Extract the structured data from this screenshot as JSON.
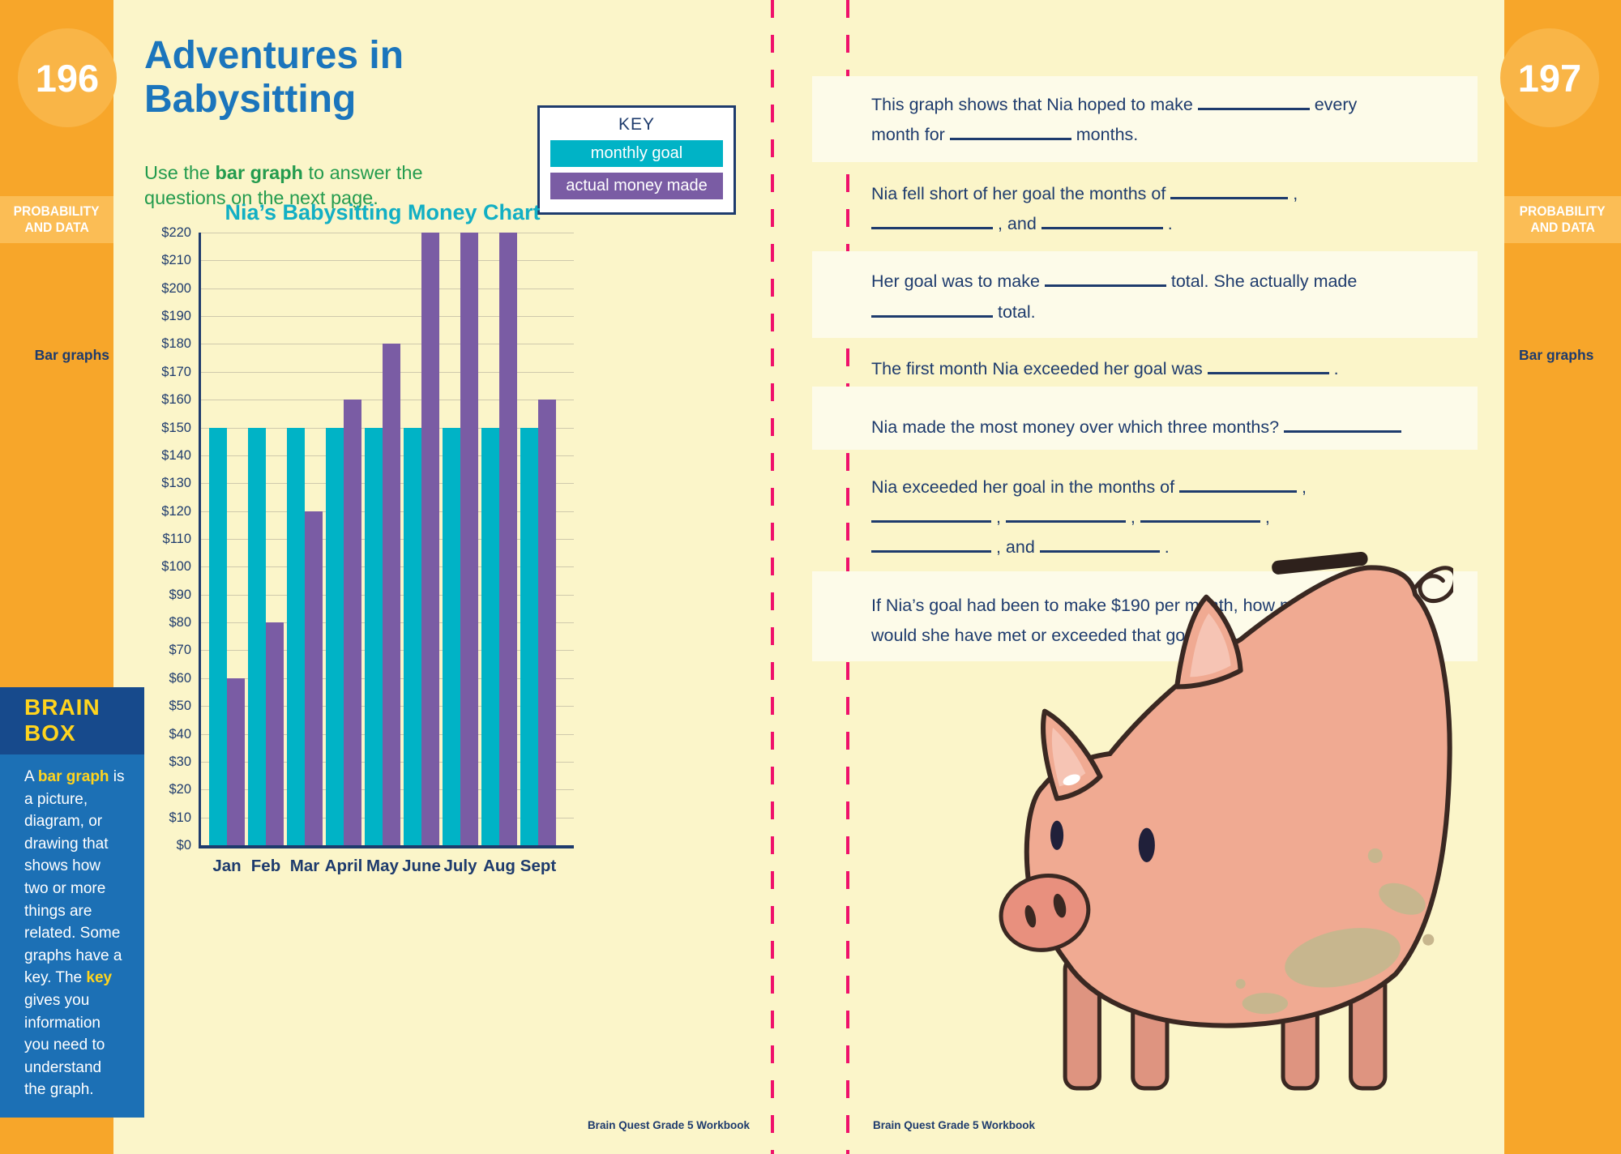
{
  "left_sidebar": {
    "page_number": "196",
    "section_line1": "PROBABILITY",
    "section_line2": "AND DATA",
    "topic_label": "Bar graphs",
    "brain_box": {
      "title_line1": "BRAIN",
      "title_line2": "BOX",
      "body_segments": [
        {
          "t": "A "
        },
        {
          "t": "bar graph",
          "hl": true
        },
        {
          "t": " is a picture, diagram, or drawing that shows how two or more things are related. Some graphs have a key. The "
        },
        {
          "t": "key",
          "hl": true
        },
        {
          "t": " gives you information you need to understand the graph."
        }
      ]
    }
  },
  "right_sidebar": {
    "page_number": "197",
    "section_line1": "PROBABILITY",
    "section_line2": "AND DATA",
    "topic_label": "Bar graphs"
  },
  "left_page": {
    "title_line1": "Adventures in",
    "title_line2": "Babysitting",
    "subtitle_segments": [
      {
        "t": "Use the "
      },
      {
        "t": "bar graph",
        "b": true
      },
      {
        "t": " to answer the questions on the next page."
      }
    ],
    "key": {
      "title": "KEY",
      "items": [
        {
          "label": "monthly goal",
          "color": "#00B3C6"
        },
        {
          "label": "actual money made",
          "color": "#7A5CA4"
        }
      ]
    },
    "footer": "Brain Quest Grade 5 Workbook"
  },
  "right_page": {
    "questions": [
      {
        "lines": [
          [
            {
              "t": "This graph shows that Nia hoped to make "
            },
            {
              "blank": 138
            },
            {
              "t": " every"
            }
          ],
          [
            {
              "t": "month for "
            },
            {
              "blank": 150
            },
            {
              "t": " months."
            }
          ]
        ]
      },
      {
        "lines": [
          [
            {
              "t": "Nia fell short of her goal the months of "
            },
            {
              "blank": 145
            },
            {
              "t": " ,"
            }
          ],
          [
            {
              "blank": 150
            },
            {
              "t": " , and "
            },
            {
              "blank": 150
            },
            {
              "t": " ."
            }
          ]
        ]
      },
      {
        "lines": [
          [
            {
              "t": "Her goal was to make "
            },
            {
              "blank": 150
            },
            {
              "t": " total. She actually made"
            }
          ],
          [
            {
              "blank": 150
            },
            {
              "t": " total."
            }
          ]
        ]
      },
      {
        "lines": [
          [
            {
              "t": "The first month Nia exceeded her goal was "
            },
            {
              "blank": 150
            },
            {
              "t": " ."
            }
          ]
        ]
      },
      {
        "lines": [
          [
            {
              "t": "Nia made the most money over which three months? "
            },
            {
              "blank": 145
            }
          ]
        ]
      },
      {
        "lines": [
          [
            {
              "t": "Nia exceeded her goal in the months of "
            },
            {
              "blank": 145
            },
            {
              "t": " ,"
            }
          ],
          [
            {
              "blank": 148
            },
            {
              "t": " , "
            },
            {
              "blank": 148
            },
            {
              "t": " , "
            },
            {
              "blank": 148
            },
            {
              "t": " ,"
            }
          ],
          [
            {
              "blank": 148
            },
            {
              "t": " , and "
            },
            {
              "blank": 148
            },
            {
              "t": " ."
            }
          ]
        ]
      },
      {
        "lines": [
          [
            {
              "t": "If Nia’s goal had been to make $190 per month, how many months"
            }
          ],
          [
            {
              "t": "would she have met or exceeded that goal? "
            },
            {
              "blank": 140
            }
          ]
        ]
      }
    ],
    "footer": "Brain Quest Grade 5 Workbook"
  },
  "chart_data": {
    "type": "bar",
    "title": "Nia’s Babysitting Money Chart",
    "categories": [
      "Jan",
      "Feb",
      "Mar",
      "April",
      "May",
      "June",
      "July",
      "Aug",
      "Sept"
    ],
    "series": [
      {
        "name": "monthly goal",
        "color": "#00B3C6",
        "values": [
          150,
          150,
          150,
          150,
          150,
          150,
          150,
          150,
          150
        ]
      },
      {
        "name": "actual money made",
        "color": "#7A5CA4",
        "values": [
          60,
          80,
          120,
          160,
          180,
          220,
          220,
          220,
          160
        ]
      }
    ],
    "xlabel": "",
    "ylabel": "",
    "ylim": [
      0,
      220
    ],
    "ytick_step": 10,
    "ytick_prefix": "$",
    "grid": true,
    "legend_position": "key box, top of left page"
  },
  "colors": {
    "page_bg": "#FBF5C9",
    "light_band": "#FDFBE9",
    "sidebar_orange": "#F7A62A",
    "navy_text": "#1E3B6D",
    "title_blue": "#1B75BC",
    "subtitle_green": "#239B4E",
    "teal": "#00B3C6",
    "purple": "#7A5CA4",
    "chart_title_teal": "#12AFC4",
    "cut_line_pink": "#EF116B",
    "brainbox_header": "#174A8C",
    "brainbox_body": "#1C70B5",
    "brainbox_yellow": "#FFD41E"
  }
}
